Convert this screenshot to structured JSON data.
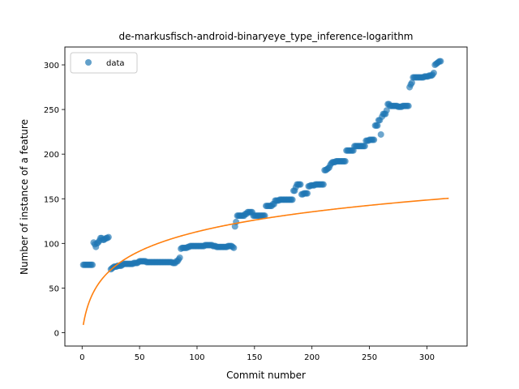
{
  "chart_data": {
    "type": "scatter",
    "title": "de-markusfisch-android-binaryeye_type_inference-logarithm",
    "xlabel": "Commit number",
    "ylabel": "Number of instance of a feature",
    "xlim": [
      -15,
      335
    ],
    "ylim": [
      -15,
      320
    ],
    "xticks": [
      0,
      50,
      100,
      150,
      200,
      250,
      300
    ],
    "yticks": [
      0,
      50,
      100,
      150,
      200,
      250,
      300
    ],
    "legend": {
      "position": "top-left",
      "entries": [
        "data"
      ]
    },
    "grid": false,
    "colors": {
      "data": "#1f77b4",
      "fit": "#ff7f0e"
    },
    "series": [
      {
        "name": "data",
        "kind": "scatter",
        "points": [
          [
            1,
            76
          ],
          [
            2,
            76
          ],
          [
            3,
            76
          ],
          [
            4,
            76
          ],
          [
            5,
            76
          ],
          [
            6,
            76
          ],
          [
            7,
            76
          ],
          [
            8,
            76
          ],
          [
            9,
            76
          ],
          [
            10,
            101
          ],
          [
            11,
            99
          ],
          [
            12,
            96
          ],
          [
            13,
            100
          ],
          [
            14,
            101
          ],
          [
            15,
            103
          ],
          [
            16,
            106
          ],
          [
            17,
            106
          ],
          [
            18,
            104
          ],
          [
            19,
            104
          ],
          [
            20,
            105
          ],
          [
            21,
            106
          ],
          [
            22,
            106
          ],
          [
            23,
            107
          ],
          [
            25,
            71
          ],
          [
            26,
            72
          ],
          [
            27,
            73
          ],
          [
            28,
            74
          ],
          [
            29,
            74
          ],
          [
            30,
            74
          ],
          [
            31,
            75
          ],
          [
            32,
            75
          ],
          [
            33,
            75
          ],
          [
            34,
            75
          ],
          [
            35,
            76
          ],
          [
            36,
            77
          ],
          [
            37,
            77
          ],
          [
            38,
            77
          ],
          [
            39,
            77
          ],
          [
            40,
            77
          ],
          [
            41,
            77
          ],
          [
            42,
            77
          ],
          [
            43,
            77
          ],
          [
            44,
            77
          ],
          [
            45,
            78
          ],
          [
            46,
            78
          ],
          [
            47,
            78
          ],
          [
            48,
            78
          ],
          [
            49,
            79
          ],
          [
            50,
            80
          ],
          [
            51,
            80
          ],
          [
            52,
            80
          ],
          [
            53,
            80
          ],
          [
            54,
            80
          ],
          [
            55,
            80
          ],
          [
            56,
            79
          ],
          [
            57,
            79
          ],
          [
            58,
            79
          ],
          [
            59,
            79
          ],
          [
            60,
            79
          ],
          [
            61,
            79
          ],
          [
            62,
            79
          ],
          [
            63,
            79
          ],
          [
            64,
            79
          ],
          [
            65,
            79
          ],
          [
            66,
            79
          ],
          [
            67,
            79
          ],
          [
            68,
            79
          ],
          [
            69,
            79
          ],
          [
            70,
            79
          ],
          [
            71,
            79
          ],
          [
            72,
            79
          ],
          [
            73,
            79
          ],
          [
            74,
            79
          ],
          [
            75,
            79
          ],
          [
            76,
            79
          ],
          [
            77,
            79
          ],
          [
            78,
            79
          ],
          [
            79,
            78
          ],
          [
            80,
            78
          ],
          [
            81,
            78
          ],
          [
            82,
            80
          ],
          [
            83,
            80
          ],
          [
            84,
            82
          ],
          [
            85,
            84
          ],
          [
            86,
            94
          ],
          [
            87,
            95
          ],
          [
            88,
            95
          ],
          [
            89,
            95
          ],
          [
            90,
            95
          ],
          [
            91,
            95
          ],
          [
            92,
            96
          ],
          [
            93,
            96
          ],
          [
            94,
            97
          ],
          [
            95,
            97
          ],
          [
            96,
            97
          ],
          [
            97,
            97
          ],
          [
            98,
            97
          ],
          [
            99,
            97
          ],
          [
            100,
            97
          ],
          [
            101,
            97
          ],
          [
            102,
            97
          ],
          [
            103,
            97
          ],
          [
            104,
            97
          ],
          [
            105,
            97
          ],
          [
            106,
            97
          ],
          [
            107,
            98
          ],
          [
            108,
            98
          ],
          [
            109,
            98
          ],
          [
            110,
            98
          ],
          [
            111,
            98
          ],
          [
            112,
            98
          ],
          [
            113,
            98
          ],
          [
            114,
            97
          ],
          [
            115,
            97
          ],
          [
            116,
            97
          ],
          [
            117,
            96
          ],
          [
            118,
            96
          ],
          [
            119,
            96
          ],
          [
            120,
            96
          ],
          [
            121,
            96
          ],
          [
            122,
            96
          ],
          [
            123,
            96
          ],
          [
            124,
            96
          ],
          [
            125,
            96
          ],
          [
            126,
            96
          ],
          [
            127,
            97
          ],
          [
            128,
            97
          ],
          [
            129,
            97
          ],
          [
            130,
            97
          ],
          [
            131,
            96
          ],
          [
            132,
            95
          ],
          [
            133,
            119
          ],
          [
            134,
            124
          ],
          [
            135,
            131
          ],
          [
            136,
            131
          ],
          [
            137,
            131
          ],
          [
            138,
            131
          ],
          [
            139,
            131
          ],
          [
            140,
            131
          ],
          [
            141,
            131
          ],
          [
            142,
            133
          ],
          [
            143,
            133
          ],
          [
            144,
            135
          ],
          [
            145,
            135
          ],
          [
            146,
            135
          ],
          [
            147,
            135
          ],
          [
            148,
            135
          ],
          [
            149,
            131
          ],
          [
            150,
            131
          ],
          [
            151,
            131
          ],
          [
            152,
            131
          ],
          [
            153,
            131
          ],
          [
            154,
            131
          ],
          [
            155,
            131
          ],
          [
            156,
            131
          ],
          [
            157,
            131
          ],
          [
            158,
            131
          ],
          [
            159,
            131
          ],
          [
            160,
            142
          ],
          [
            161,
            142
          ],
          [
            162,
            142
          ],
          [
            163,
            142
          ],
          [
            164,
            142
          ],
          [
            165,
            142
          ],
          [
            166,
            144
          ],
          [
            167,
            144
          ],
          [
            168,
            148
          ],
          [
            169,
            148
          ],
          [
            170,
            148
          ],
          [
            171,
            148
          ],
          [
            172,
            149
          ],
          [
            173,
            149
          ],
          [
            174,
            149
          ],
          [
            175,
            149
          ],
          [
            176,
            149
          ],
          [
            177,
            149
          ],
          [
            178,
            149
          ],
          [
            179,
            149
          ],
          [
            180,
            149
          ],
          [
            181,
            149
          ],
          [
            182,
            149
          ],
          [
            183,
            149
          ],
          [
            184,
            159
          ],
          [
            185,
            159
          ],
          [
            186,
            163
          ],
          [
            187,
            166
          ],
          [
            188,
            166
          ],
          [
            189,
            166
          ],
          [
            190,
            166
          ],
          [
            191,
            155
          ],
          [
            192,
            155
          ],
          [
            193,
            156
          ],
          [
            194,
            156
          ],
          [
            195,
            156
          ],
          [
            196,
            156
          ],
          [
            197,
            164
          ],
          [
            198,
            164
          ],
          [
            199,
            165
          ],
          [
            200,
            165
          ],
          [
            201,
            165
          ],
          [
            202,
            165
          ],
          [
            203,
            166
          ],
          [
            204,
            166
          ],
          [
            205,
            166
          ],
          [
            206,
            166
          ],
          [
            207,
            166
          ],
          [
            208,
            166
          ],
          [
            209,
            166
          ],
          [
            210,
            166
          ],
          [
            211,
            182
          ],
          [
            212,
            182
          ],
          [
            213,
            183
          ],
          [
            214,
            184
          ],
          [
            215,
            185
          ],
          [
            216,
            188
          ],
          [
            217,
            190
          ],
          [
            218,
            191
          ],
          [
            219,
            191
          ],
          [
            220,
            191
          ],
          [
            221,
            192
          ],
          [
            222,
            192
          ],
          [
            223,
            192
          ],
          [
            224,
            192
          ],
          [
            225,
            192
          ],
          [
            226,
            192
          ],
          [
            227,
            192
          ],
          [
            228,
            192
          ],
          [
            229,
            192
          ],
          [
            230,
            204
          ],
          [
            231,
            204
          ],
          [
            232,
            204
          ],
          [
            233,
            204
          ],
          [
            234,
            204
          ],
          [
            235,
            204
          ],
          [
            236,
            204
          ],
          [
            237,
            209
          ],
          [
            238,
            209
          ],
          [
            239,
            209
          ],
          [
            240,
            209
          ],
          [
            241,
            209
          ],
          [
            242,
            209
          ],
          [
            243,
            209
          ],
          [
            244,
            209
          ],
          [
            245,
            209
          ],
          [
            246,
            209
          ],
          [
            247,
            215
          ],
          [
            248,
            215
          ],
          [
            249,
            215
          ],
          [
            250,
            216
          ],
          [
            251,
            216
          ],
          [
            252,
            216
          ],
          [
            253,
            216
          ],
          [
            254,
            216
          ],
          [
            255,
            232
          ],
          [
            256,
            232
          ],
          [
            257,
            232
          ],
          [
            258,
            238
          ],
          [
            259,
            238
          ],
          [
            260,
            222
          ],
          [
            261,
            242
          ],
          [
            262,
            245
          ],
          [
            263,
            245
          ],
          [
            264,
            245
          ],
          [
            265,
            249
          ],
          [
            266,
            256
          ],
          [
            267,
            256
          ],
          [
            268,
            254
          ],
          [
            269,
            254
          ],
          [
            270,
            254
          ],
          [
            271,
            254
          ],
          [
            272,
            254
          ],
          [
            273,
            254
          ],
          [
            274,
            254
          ],
          [
            275,
            253
          ],
          [
            276,
            253
          ],
          [
            277,
            253
          ],
          [
            278,
            253
          ],
          [
            279,
            254
          ],
          [
            280,
            254
          ],
          [
            281,
            254
          ],
          [
            282,
            254
          ],
          [
            283,
            254
          ],
          [
            284,
            254
          ],
          [
            285,
            275
          ],
          [
            286,
            278
          ],
          [
            287,
            280
          ],
          [
            288,
            286
          ],
          [
            289,
            286
          ],
          [
            290,
            286
          ],
          [
            291,
            286
          ],
          [
            292,
            286
          ],
          [
            293,
            286
          ],
          [
            294,
            286
          ],
          [
            295,
            286
          ],
          [
            296,
            286
          ],
          [
            297,
            286
          ],
          [
            298,
            287
          ],
          [
            299,
            287
          ],
          [
            300,
            287
          ],
          [
            301,
            287
          ],
          [
            302,
            288
          ],
          [
            303,
            288
          ],
          [
            304,
            288
          ],
          [
            305,
            289
          ],
          [
            306,
            291
          ],
          [
            307,
            300
          ],
          [
            308,
            301
          ],
          [
            309,
            302
          ],
          [
            310,
            303
          ],
          [
            311,
            304
          ],
          [
            312,
            304
          ]
        ]
      },
      {
        "kind": "line",
        "model": "logarithmic",
        "coefficients": {
          "a": 32.93,
          "b": 0.3
        },
        "x_range": [
          1,
          319
        ]
      }
    ]
  }
}
